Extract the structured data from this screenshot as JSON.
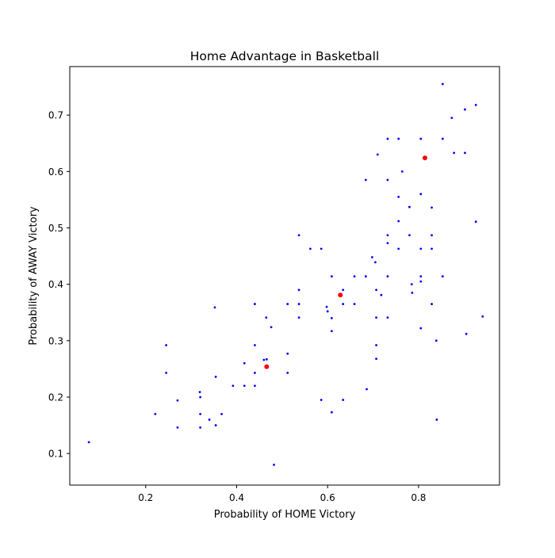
{
  "chart_data": {
    "type": "scatter",
    "title": "Home Advantage in Basketball",
    "xlabel": "Probability of HOME Victory",
    "ylabel": "Probability of AWAY Victory",
    "xlim": [
      0.033,
      0.978
    ],
    "ylim": [
      0.044,
      0.786
    ],
    "x_ticks": [
      0.2,
      0.4,
      0.6,
      0.8
    ],
    "y_ticks": [
      0.1,
      0.2,
      0.3,
      0.4,
      0.5,
      0.6,
      0.7
    ],
    "x_tick_labels": [
      "0.2",
      "0.4",
      "0.6",
      "0.8"
    ],
    "y_tick_labels": [
      "0.1",
      "0.2",
      "0.3",
      "0.4",
      "0.5",
      "0.6",
      "0.7"
    ],
    "grid": false,
    "colors": {
      "points": "#0000ff",
      "highlights": "#ff0000",
      "axes": "#000000",
      "background": "#ffffff"
    },
    "series": [
      {
        "color": "#0000ff",
        "marker_size": "small",
        "points": [
          [
            0.075,
            0.12
          ],
          [
            0.221,
            0.17
          ],
          [
            0.245,
            0.292
          ],
          [
            0.245,
            0.243
          ],
          [
            0.27,
            0.194
          ],
          [
            0.27,
            0.146
          ],
          [
            0.319,
            0.209
          ],
          [
            0.32,
            0.2
          ],
          [
            0.32,
            0.17
          ],
          [
            0.32,
            0.146
          ],
          [
            0.34,
            0.16
          ],
          [
            0.352,
            0.359
          ],
          [
            0.354,
            0.236
          ],
          [
            0.354,
            0.15
          ],
          [
            0.367,
            0.17
          ],
          [
            0.392,
            0.22
          ],
          [
            0.417,
            0.26
          ],
          [
            0.417,
            0.22
          ],
          [
            0.44,
            0.365
          ],
          [
            0.44,
            0.292
          ],
          [
            0.44,
            0.243
          ],
          [
            0.44,
            0.22
          ],
          [
            0.46,
            0.266
          ],
          [
            0.465,
            0.341
          ],
          [
            0.466,
            0.267
          ],
          [
            0.476,
            0.324
          ],
          [
            0.482,
            0.08
          ],
          [
            0.512,
            0.365
          ],
          [
            0.512,
            0.277
          ],
          [
            0.512,
            0.243
          ],
          [
            0.537,
            0.487
          ],
          [
            0.537,
            0.39
          ],
          [
            0.537,
            0.365
          ],
          [
            0.537,
            0.341
          ],
          [
            0.562,
            0.463
          ],
          [
            0.586,
            0.463
          ],
          [
            0.586,
            0.195
          ],
          [
            0.598,
            0.36
          ],
          [
            0.6,
            0.352
          ],
          [
            0.609,
            0.414
          ],
          [
            0.609,
            0.34
          ],
          [
            0.609,
            0.317
          ],
          [
            0.609,
            0.173
          ],
          [
            0.634,
            0.39
          ],
          [
            0.634,
            0.365
          ],
          [
            0.634,
            0.195
          ],
          [
            0.659,
            0.414
          ],
          [
            0.659,
            0.365
          ],
          [
            0.684,
            0.585
          ],
          [
            0.684,
            0.414
          ],
          [
            0.686,
            0.214
          ],
          [
            0.698,
            0.448
          ],
          [
            0.705,
            0.439
          ],
          [
            0.707,
            0.39
          ],
          [
            0.707,
            0.341
          ],
          [
            0.707,
            0.292
          ],
          [
            0.707,
            0.268
          ],
          [
            0.71,
            0.63
          ],
          [
            0.718,
            0.381
          ],
          [
            0.732,
            0.658
          ],
          [
            0.732,
            0.585
          ],
          [
            0.732,
            0.487
          ],
          [
            0.732,
            0.473
          ],
          [
            0.732,
            0.414
          ],
          [
            0.732,
            0.341
          ],
          [
            0.756,
            0.658
          ],
          [
            0.756,
            0.555
          ],
          [
            0.756,
            0.512
          ],
          [
            0.756,
            0.463
          ],
          [
            0.764,
            0.6
          ],
          [
            0.78,
            0.537
          ],
          [
            0.78,
            0.487
          ],
          [
            0.785,
            0.4
          ],
          [
            0.786,
            0.385
          ],
          [
            0.805,
            0.658
          ],
          [
            0.805,
            0.56
          ],
          [
            0.805,
            0.463
          ],
          [
            0.805,
            0.414
          ],
          [
            0.805,
            0.405
          ],
          [
            0.805,
            0.322
          ],
          [
            0.829,
            0.536
          ],
          [
            0.829,
            0.487
          ],
          [
            0.829,
            0.463
          ],
          [
            0.829,
            0.365
          ],
          [
            0.839,
            0.3
          ],
          [
            0.84,
            0.16
          ],
          [
            0.853,
            0.755
          ],
          [
            0.853,
            0.658
          ],
          [
            0.853,
            0.414
          ],
          [
            0.873,
            0.695
          ],
          [
            0.878,
            0.633
          ],
          [
            0.902,
            0.71
          ],
          [
            0.902,
            0.633
          ],
          [
            0.905,
            0.312
          ],
          [
            0.926,
            0.718
          ],
          [
            0.926,
            0.511
          ],
          [
            0.941,
            0.343
          ]
        ]
      },
      {
        "color": "#ff0000",
        "marker_size": "large",
        "points": [
          [
            0.466,
            0.254
          ],
          [
            0.628,
            0.381
          ],
          [
            0.814,
            0.624
          ]
        ]
      }
    ]
  }
}
